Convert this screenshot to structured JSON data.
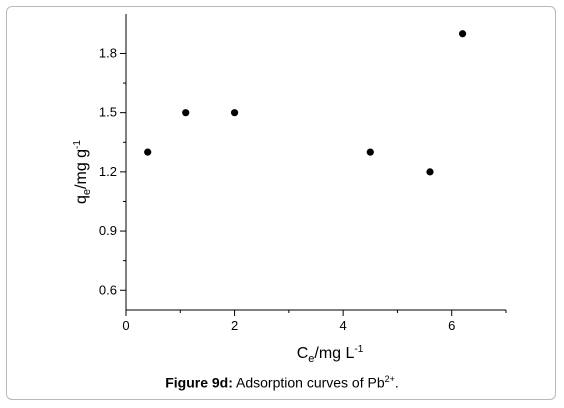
{
  "chart_data": {
    "type": "scatter",
    "x": [
      0.4,
      1.1,
      2.0,
      4.5,
      5.6,
      6.2
    ],
    "y": [
      1.3,
      1.5,
      1.5,
      1.3,
      1.2,
      1.9
    ],
    "xlim": [
      0,
      7
    ],
    "ylim": [
      0.5,
      2.0
    ],
    "x_ticks": [
      0,
      2,
      4,
      6
    ],
    "y_ticks": [
      0.6,
      0.9,
      1.2,
      1.5,
      1.8
    ],
    "x_tick_labels": [
      "0",
      "2",
      "4",
      "6"
    ],
    "y_tick_labels": [
      "0.6",
      "0.9",
      "1.2",
      "1.5",
      "1.8"
    ],
    "xlabel": {
      "main": "C",
      "sub": "e",
      "unit": "/mg L",
      "sup": "-1"
    },
    "ylabel": {
      "main": "q",
      "sub": "e",
      "unit": "/mg g",
      "sup": "-1"
    },
    "grid": false,
    "legend": "none",
    "marker_color": "#000000"
  },
  "caption": {
    "label": "Figure 9d:",
    "text": " Adsorption curves of Pb",
    "sup": "2+",
    "end": "."
  }
}
